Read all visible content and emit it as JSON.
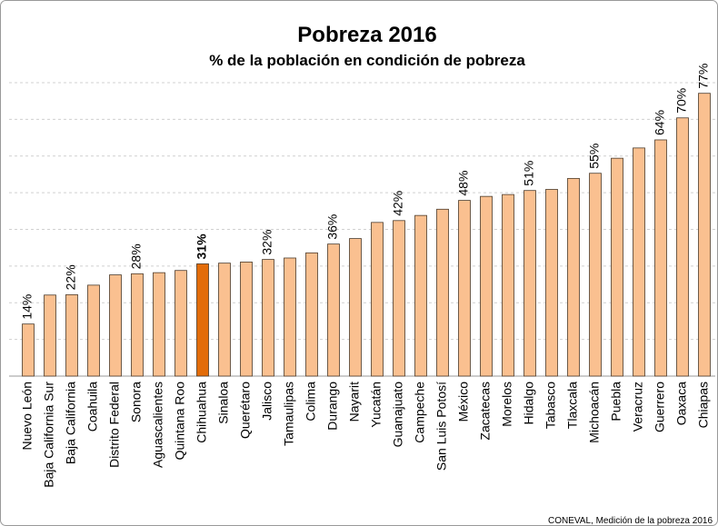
{
  "chart_data": {
    "type": "bar",
    "title": "Pobreza 2016",
    "subtitle": "% de la población en condición de pobreza",
    "source": "CONEVAL, Medición de la pobreza 2016",
    "categories": [
      "Nuevo León",
      "Baja California Sur",
      "Baja California",
      "Coahuila",
      "Distrito Federal",
      "Sonora",
      "Aguascalientes",
      "Quintana Roo",
      "Chihuahua",
      "Sinaloa",
      "Querétaro",
      "Jalisco",
      "Tamaulipas",
      "Colima",
      "Durango",
      "Nayarit",
      "Yucatán",
      "Guanajuato",
      "Campeche",
      "San Luis Potosí",
      "México",
      "Zacatecas",
      "Morelos",
      "Hidalgo",
      "Tabasco",
      "Tlaxcala",
      "Michoacán",
      "Puebla",
      "Veracruz",
      "Guerrero",
      "Oaxaca",
      "Chiapas"
    ],
    "values": [
      14.2,
      22.1,
      22.2,
      24.8,
      27.6,
      27.9,
      28.2,
      28.8,
      30.6,
      30.8,
      31.1,
      31.8,
      32.2,
      33.6,
      36.0,
      37.5,
      41.9,
      42.4,
      43.8,
      45.5,
      47.9,
      49.0,
      49.5,
      50.6,
      50.9,
      53.9,
      55.3,
      59.4,
      62.2,
      64.4,
      70.4,
      77.1
    ],
    "value_labels": [
      "14%",
      null,
      "22%",
      null,
      null,
      "28%",
      null,
      null,
      "31%",
      null,
      null,
      "32%",
      null,
      null,
      "36%",
      null,
      null,
      "42%",
      null,
      null,
      "48%",
      null,
      null,
      "51%",
      null,
      null,
      "55%",
      null,
      null,
      "64%",
      "70%",
      "77%"
    ],
    "colors": [
      "#fac090",
      "#fac090",
      "#fac090",
      "#fac090",
      "#fac090",
      "#fac090",
      "#fac090",
      "#fac090",
      "#e36c09",
      "#fac090",
      "#fac090",
      "#fac090",
      "#fac090",
      "#fac090",
      "#fac090",
      "#fac090",
      "#fac090",
      "#fac090",
      "#fac090",
      "#fac090",
      "#fac090",
      "#fac090",
      "#fac090",
      "#fac090",
      "#fac090",
      "#fac090",
      "#fac090",
      "#fac090",
      "#fac090",
      "#fac090",
      "#fac090",
      "#fac090"
    ],
    "ylim": [
      0,
      80
    ],
    "yticks": [
      0,
      10,
      20,
      30,
      40,
      50,
      60,
      70,
      80
    ],
    "grid": true
  }
}
